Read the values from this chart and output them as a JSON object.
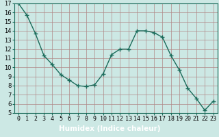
{
  "x": [
    0,
    1,
    2,
    3,
    4,
    5,
    6,
    7,
    8,
    9,
    10,
    11,
    12,
    13,
    14,
    15,
    16,
    17,
    18,
    19,
    20,
    21,
    22,
    23
  ],
  "y": [
    17,
    15.7,
    13.7,
    11.3,
    10.3,
    9.2,
    8.6,
    8.0,
    7.9,
    8.1,
    9.3,
    11.4,
    12.0,
    12.0,
    14.0,
    14.0,
    13.8,
    13.3,
    11.3,
    9.7,
    7.7,
    6.6,
    5.3,
    6.3
  ],
  "line_color": "#1a6b5a",
  "marker": "+",
  "markersize": 4,
  "linewidth": 1.0,
  "bg_color": "#cce8e4",
  "plot_bg_color": "#cce8e4",
  "grid_color": "#b08888",
  "xlabel": "Humidex (Indice chaleur)",
  "xlabel_fontsize": 7.5,
  "xlim": [
    -0.5,
    23.5
  ],
  "ylim": [
    5,
    17
  ],
  "yticks": [
    5,
    6,
    7,
    8,
    9,
    10,
    11,
    12,
    13,
    14,
    15,
    16,
    17
  ],
  "xticks": [
    0,
    1,
    2,
    3,
    4,
    5,
    6,
    7,
    8,
    9,
    10,
    11,
    12,
    13,
    14,
    15,
    16,
    17,
    18,
    19,
    20,
    21,
    22,
    23
  ],
  "tick_fontsize": 6,
  "grid_linewidth": 0.5,
  "bottom_bar_color": "#2e6e5e",
  "xlabel_bar_height": 0.12
}
